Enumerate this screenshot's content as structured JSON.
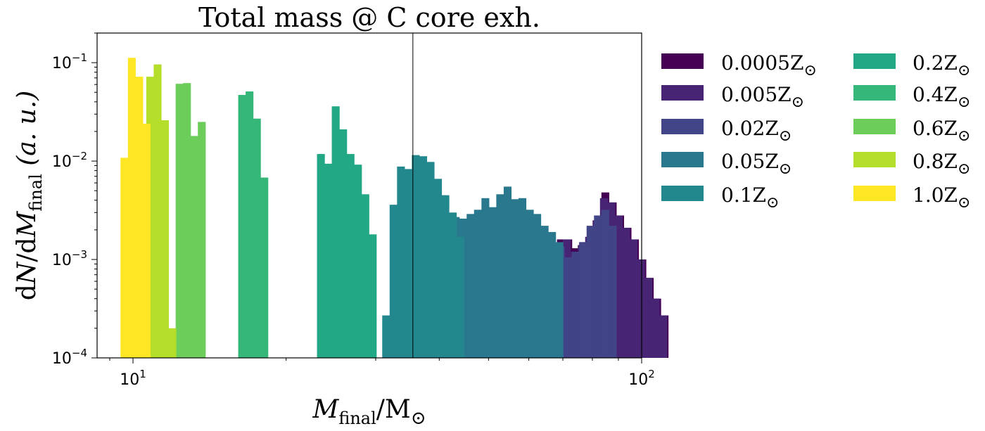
{
  "chart_data": {
    "type": "bar",
    "title": "Total mass @ C core exh.",
    "xlabel": "M_final/M_⊙",
    "ylabel": "dN/dM_final (a. u.)",
    "xscale": "log",
    "yscale": "log",
    "xlim": [
      8.5,
      100
    ],
    "ylim": [
      0.0001,
      0.2
    ],
    "x_ticks": [
      {
        "value": 10,
        "base": "10",
        "exp": "1"
      },
      {
        "value": 100,
        "base": "10",
        "exp": "2"
      }
    ],
    "y_ticks": [
      {
        "value": 0.1,
        "base": "10",
        "exp": "−1"
      },
      {
        "value": 0.01,
        "base": "10",
        "exp": "−2"
      },
      {
        "value": 0.001,
        "base": "10",
        "exp": "−3"
      },
      {
        "value": 0.0001,
        "base": "10",
        "exp": "−4"
      }
    ],
    "vline_x": 35.5,
    "legend_position": "outside right, two columns",
    "series": [
      {
        "name": "0.0005Z⊙",
        "color": "#440154",
        "x_start": 59.6,
        "bin_ratio": 1.0341,
        "values": [
          0.00125,
          0.00105,
          0.00135,
          0.00145,
          0.0016,
          0.0016,
          0.0013,
          0.0015,
          0.0017,
          0.0025,
          0.0048,
          0.0038,
          0.0028,
          0.0021,
          0.0016,
          0.001,
          0.00065,
          0.0004,
          0.00027
        ]
      },
      {
        "name": "0.005Z⊙",
        "color": "#482475",
        "x_start": 39.6,
        "bin_ratio": 1.0341,
        "values": [
          0.0017,
          0,
          0,
          0,
          0,
          0,
          0,
          0,
          0,
          0,
          0,
          0,
          0.00155,
          0.00125,
          0.00135,
          0.00145,
          0.00145,
          0.0016,
          0.0012,
          0.0014,
          0.0017,
          0.0025,
          0.0042,
          0.0038,
          0.0028,
          0.0021,
          0.0016,
          0.001,
          0.00065,
          0.0004,
          0.00027
        ]
      },
      {
        "name": "0.02Z⊙",
        "color": "#414487",
        "x_start": 59.6,
        "bin_ratio": 1.0341,
        "values": [
          0.0009,
          0.0009,
          0.0011,
          0.0013,
          0.00135,
          0.00105,
          0.0012,
          0.0015,
          0.0022,
          0.0028,
          0.0032,
          0.0022
        ]
      },
      {
        "name": "0.05Z⊙",
        "color": "#2a788e",
        "x_start": 39.6,
        "bin_ratio": 1.0341,
        "values": [
          0.0016,
          0.0024,
          0.0027,
          0.0026,
          0.0029,
          0.0032,
          0.0042,
          0.0034,
          0.0046,
          0.0055,
          0.0041,
          0.0042,
          0.0032,
          0.0029,
          0.0022,
          0.0019,
          0.0015
        ]
      },
      {
        "name": "0.1Z⊙",
        "color": "#23888e",
        "x_start": 30.9,
        "bin_ratio": 1.0341,
        "values": [
          0.00027,
          0.0036,
          0.0088,
          0.0083,
          0.0115,
          0.0112,
          0.0098,
          0.0066,
          0.0045,
          0.003,
          0.0017
        ]
      },
      {
        "name": "0.2Z⊙",
        "color": "#22a884",
        "x_start": 23.0,
        "bin_ratio": 1.0341,
        "values": [
          0.0118,
          0.0094,
          0.036,
          0.021,
          0.0118,
          0.0092,
          0.0046,
          0.0018
        ]
      },
      {
        "name": "0.4Z⊙",
        "color": "#35b779",
        "x_start": 16.1,
        "bin_ratio": 1.0341,
        "values": [
          0.047,
          0.051,
          0.027,
          0.0068
        ]
      },
      {
        "name": "0.6Z⊙",
        "color": "#6ccd5a",
        "x_start": 12.13,
        "bin_ratio": 1.0341,
        "values": [
          0.061,
          0.062,
          0.018,
          0.025
        ]
      },
      {
        "name": "0.8Z⊙",
        "color": "#b5de2b",
        "x_start": 10.62,
        "bin_ratio": 1.0341,
        "values": [
          0.072,
          0.096,
          0.026,
          0.0002
        ]
      },
      {
        "name": "1.0Z⊙",
        "color": "#fde725",
        "x_start": 9.45,
        "bin_ratio": 1.0341,
        "values": [
          0.0108,
          0.112,
          0.072,
          0.024
        ]
      }
    ]
  },
  "legend_labels": {
    "s0": {
      "main": "0.0005Z",
      "sub": "⊙"
    },
    "s1": {
      "main": "0.005Z",
      "sub": "⊙"
    },
    "s2": {
      "main": "0.02Z",
      "sub": "⊙"
    },
    "s3": {
      "main": "0.05Z",
      "sub": "⊙"
    },
    "s4": {
      "main": "0.1Z",
      "sub": "⊙"
    },
    "s5": {
      "main": "0.2Z",
      "sub": "⊙"
    },
    "s6": {
      "main": "0.4Z",
      "sub": "⊙"
    },
    "s7": {
      "main": "0.6Z",
      "sub": "⊙"
    },
    "s8": {
      "main": "0.8Z",
      "sub": "⊙"
    },
    "s9": {
      "main": "1.0Z",
      "sub": "⊙"
    }
  },
  "axis_label_parts": {
    "x": {
      "M": "M",
      "final": "final",
      "slash": "/M",
      "sun": "⊙"
    },
    "y": {
      "d1": "d",
      "N": "N",
      "slash": "/d",
      "M": "M",
      "final": "final",
      "au": " (a. u.)"
    }
  }
}
